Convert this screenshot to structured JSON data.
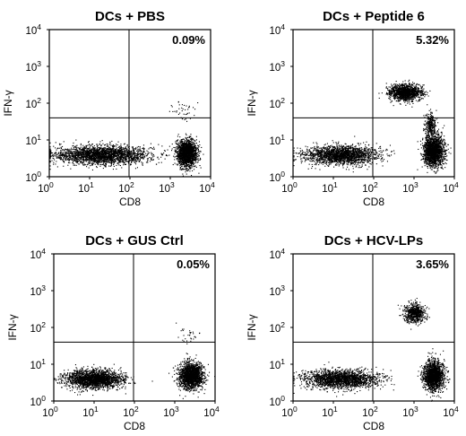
{
  "chart_data": [
    {
      "type": "scatter",
      "title": "DCs + PBS",
      "xlabel": "CD8",
      "ylabel": "IFN-γ",
      "x_scale": "log",
      "y_scale": "log",
      "xlim": [
        1,
        10000
      ],
      "ylim": [
        1,
        10000
      ],
      "x_ticks": [
        {
          "base": "10",
          "exp": "0"
        },
        {
          "base": "10",
          "exp": "1"
        },
        {
          "base": "10",
          "exp": "2"
        },
        {
          "base": "10",
          "exp": "3"
        },
        {
          "base": "10",
          "exp": "4"
        }
      ],
      "y_ticks": [
        {
          "base": "10",
          "exp": "0"
        },
        {
          "base": "10",
          "exp": "1"
        },
        {
          "base": "10",
          "exp": "2"
        },
        {
          "base": "10",
          "exp": "3"
        },
        {
          "base": "10",
          "exp": "4"
        }
      ],
      "quadrant_gate": {
        "x": 95,
        "y": 40
      },
      "annotation": "0.09%",
      "populations": [
        {
          "center": [
            20,
            4
          ],
          "spread_decades": [
            1.2,
            0.25
          ],
          "events": 2400
        },
        {
          "center": [
            2500,
            4.5
          ],
          "spread_decades": [
            0.25,
            0.35
          ],
          "events": 1800
        },
        {
          "center": [
            2000,
            60
          ],
          "spread_decades": [
            0.3,
            0.3
          ],
          "events": 40
        }
      ]
    },
    {
      "type": "scatter",
      "title": "DCs + Peptide 6",
      "xlabel": "CD8",
      "ylabel": "IFN-γ",
      "x_scale": "log",
      "y_scale": "log",
      "xlim": [
        1,
        10000
      ],
      "ylim": [
        1,
        10000
      ],
      "x_ticks": [
        {
          "base": "10",
          "exp": "0"
        },
        {
          "base": "10",
          "exp": "1"
        },
        {
          "base": "10",
          "exp": "2"
        },
        {
          "base": "10",
          "exp": "3"
        },
        {
          "base": "10",
          "exp": "4"
        }
      ],
      "y_ticks": [
        {
          "base": "10",
          "exp": "0"
        },
        {
          "base": "10",
          "exp": "1"
        },
        {
          "base": "10",
          "exp": "2"
        },
        {
          "base": "10",
          "exp": "3"
        },
        {
          "base": "10",
          "exp": "4"
        }
      ],
      "quadrant_gate": {
        "x": 95,
        "y": 40
      },
      "annotation": "5.32%",
      "populations": [
        {
          "center": [
            15,
            4
          ],
          "spread_decades": [
            0.9,
            0.25
          ],
          "events": 2000
        },
        {
          "center": [
            3000,
            5
          ],
          "spread_decades": [
            0.25,
            0.4
          ],
          "events": 1800
        },
        {
          "center": [
            600,
            200
          ],
          "spread_decades": [
            0.4,
            0.22
          ],
          "events": 1300
        },
        {
          "center": [
            2500,
            25
          ],
          "spread_decades": [
            0.15,
            0.35
          ],
          "events": 300
        }
      ]
    },
    {
      "type": "scatter",
      "title": "DCs + GUS Ctrl",
      "xlabel": "CD8",
      "ylabel": "IFN-γ",
      "x_scale": "log",
      "y_scale": "log",
      "xlim": [
        1,
        10000
      ],
      "ylim": [
        1,
        10000
      ],
      "x_ticks": [
        {
          "base": "10",
          "exp": "0"
        },
        {
          "base": "10",
          "exp": "1"
        },
        {
          "base": "10",
          "exp": "2"
        },
        {
          "base": "10",
          "exp": "3"
        },
        {
          "base": "10",
          "exp": "4"
        }
      ],
      "y_ticks": [
        {
          "base": "10",
          "exp": "0"
        },
        {
          "base": "10",
          "exp": "1"
        },
        {
          "base": "10",
          "exp": "2"
        },
        {
          "base": "10",
          "exp": "3"
        },
        {
          "base": "10",
          "exp": "4"
        }
      ],
      "quadrant_gate": {
        "x": 95,
        "y": 40
      },
      "annotation": "0.05%",
      "populations": [
        {
          "center": [
            10,
            4
          ],
          "spread_decades": [
            0.7,
            0.25
          ],
          "events": 2200
        },
        {
          "center": [
            2500,
            5
          ],
          "spread_decades": [
            0.3,
            0.35
          ],
          "events": 1800
        },
        {
          "center": [
            2000,
            60
          ],
          "spread_decades": [
            0.3,
            0.3
          ],
          "events": 30
        }
      ]
    },
    {
      "type": "scatter",
      "title": "DCs + HCV-LPs",
      "xlabel": "CD8",
      "ylabel": "IFN-γ",
      "x_scale": "log",
      "y_scale": "log",
      "xlim": [
        1,
        10000
      ],
      "ylim": [
        1,
        10000
      ],
      "x_ticks": [
        {
          "base": "10",
          "exp": "0"
        },
        {
          "base": "10",
          "exp": "1"
        },
        {
          "base": "10",
          "exp": "2"
        },
        {
          "base": "10",
          "exp": "3"
        },
        {
          "base": "10",
          "exp": "4"
        }
      ],
      "y_ticks": [
        {
          "base": "10",
          "exp": "0"
        },
        {
          "base": "10",
          "exp": "1"
        },
        {
          "base": "10",
          "exp": "2"
        },
        {
          "base": "10",
          "exp": "3"
        },
        {
          "base": "10",
          "exp": "4"
        }
      ],
      "quadrant_gate": {
        "x": 95,
        "y": 40
      },
      "annotation": "3.65%",
      "populations": [
        {
          "center": [
            15,
            4
          ],
          "spread_decades": [
            0.9,
            0.25
          ],
          "events": 2000
        },
        {
          "center": [
            3000,
            5
          ],
          "spread_decades": [
            0.25,
            0.4
          ],
          "events": 1700
        },
        {
          "center": [
            1000,
            250
          ],
          "spread_decades": [
            0.25,
            0.25
          ],
          "events": 700
        }
      ]
    }
  ]
}
